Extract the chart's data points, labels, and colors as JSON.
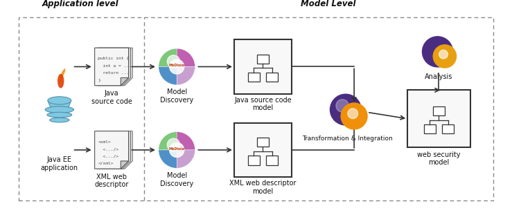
{
  "bg_color": "#ffffff",
  "dashed_color": "#888888",
  "arrow_color": "#333333",
  "label_fontsize": 7.0,
  "header_fontsize": 8.5,
  "fig_width": 7.39,
  "fig_height": 3.11,
  "labels": {
    "app_level": "Application level",
    "model_level": "Model Level",
    "java_ee": "Java EE\napplication",
    "java_src": "Java\nsource code",
    "xml_web": "XML web\ndescriptor",
    "model_disc1": "Model\nDiscovery",
    "model_disc2": "Model\nDiscovery",
    "java_src_model": "Java source code\nmodel",
    "xml_model": "XML web descriptor\nmodel",
    "transform": "Transformation & Integration",
    "analysis": "Analysis",
    "web_sec": "web security\nmodel"
  },
  "java_doc_lines": [
    "public int {",
    "  int a = ...",
    "  return ...",
    "}"
  ],
  "xml_doc_lines": [
    "<xml>",
    "  <.../>",
    "  <.../>",
    "</xml>"
  ]
}
